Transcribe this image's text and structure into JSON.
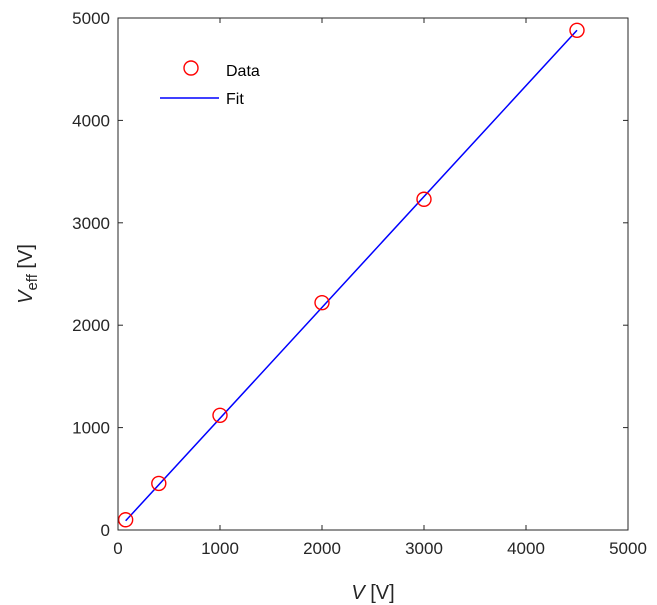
{
  "chart_data": {
    "type": "scatter",
    "xlabel": {
      "var": "V",
      "unit": " [V]"
    },
    "ylabel": {
      "var": "V",
      "sub": "eff",
      "unit": " [V]"
    },
    "xlim": [
      0,
      5000
    ],
    "ylim": [
      0,
      5000
    ],
    "xticks": [
      0,
      1000,
      2000,
      3000,
      4000,
      5000
    ],
    "yticks": [
      0,
      1000,
      2000,
      3000,
      4000,
      5000
    ],
    "grid": false,
    "legend_position": "top-left",
    "series": [
      {
        "name": "Data",
        "kind": "markers",
        "marker": "circle-open",
        "color": "#ff0000",
        "points": [
          {
            "x": 75,
            "y": 100
          },
          {
            "x": 400,
            "y": 455
          },
          {
            "x": 1000,
            "y": 1120
          },
          {
            "x": 2000,
            "y": 2220
          },
          {
            "x": 3000,
            "y": 3230
          },
          {
            "x": 4500,
            "y": 4880
          }
        ]
      },
      {
        "name": "Fit",
        "kind": "line",
        "color": "#0000ff",
        "points": [
          {
            "x": 75,
            "y": 90
          },
          {
            "x": 4500,
            "y": 4880
          }
        ]
      }
    ]
  }
}
